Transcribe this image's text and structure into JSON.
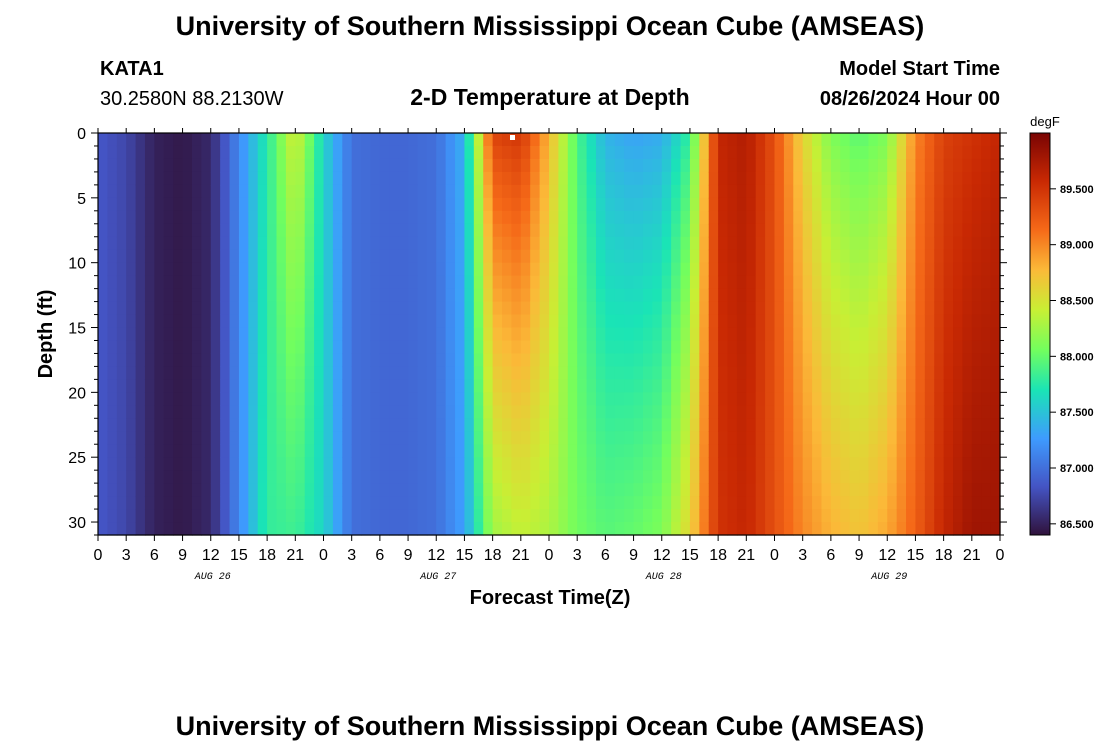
{
  "header": {
    "title": "University of Southern Mississippi Ocean Cube (AMSEAS)",
    "station": "KATA1",
    "coords": "30.2580N  88.2130W",
    "subtitle": "2-D Temperature at Depth",
    "model_label": "Model Start Time",
    "model_time": "08/26/2024 Hour 00",
    "footer_title": "University of Southern Mississippi Ocean Cube (AMSEAS)"
  },
  "chart_data": {
    "type": "heatmap",
    "title": "2-D Temperature at Depth",
    "xlabel": "Forecast Time(Z)",
    "ylabel": "Depth (ft)",
    "x_hours": [
      0,
      96
    ],
    "x_tick_labels": [
      "0",
      "3",
      "6",
      "9",
      "12",
      "15",
      "18",
      "21",
      "0",
      "3",
      "6",
      "9",
      "12",
      "15",
      "18",
      "21",
      "0",
      "3",
      "6",
      "9",
      "12",
      "15",
      "18",
      "21",
      "0",
      "3",
      "6",
      "9",
      "12",
      "15",
      "18",
      "21",
      "0"
    ],
    "day_labels": [
      "AUG 26",
      "AUG 27",
      "AUG 28",
      "AUG 29"
    ],
    "y_ticks": [
      0,
      5,
      10,
      15,
      20,
      25,
      30
    ],
    "ylim": [
      0,
      31
    ],
    "colorbar": {
      "unit": "degF",
      "range": [
        86.4,
        90.0
      ],
      "tick_values": [
        86.5,
        87.0,
        87.5,
        88.0,
        88.5,
        89.0,
        89.5
      ],
      "tick_labels": [
        "86.500",
        "87.000",
        "87.500",
        "88.000",
        "88.500",
        "89.000",
        "89.500"
      ]
    },
    "time_profile_hours": [
      0,
      3,
      6,
      9,
      12,
      15,
      18,
      21,
      24,
      27,
      30,
      33,
      36,
      39,
      42,
      45,
      48,
      51,
      54,
      57,
      60,
      63,
      66,
      69,
      72,
      75,
      78,
      81,
      84,
      87,
      90,
      93,
      96
    ],
    "temp_surface_degF": [
      86.85,
      86.75,
      86.5,
      86.45,
      86.55,
      87.15,
      87.75,
      88.5,
      87.6,
      87.0,
      86.95,
      86.95,
      87.0,
      87.4,
      89.4,
      89.5,
      88.8,
      87.9,
      87.4,
      87.3,
      87.35,
      87.8,
      89.6,
      89.7,
      89.3,
      88.6,
      88.1,
      87.95,
      88.1,
      89.0,
      89.4,
      89.5,
      89.6
    ],
    "temp_bottom_degF": [
      86.85,
      86.75,
      86.5,
      86.45,
      86.55,
      87.15,
      87.8,
      87.85,
      87.6,
      87.0,
      86.95,
      86.95,
      87.0,
      87.3,
      88.25,
      88.4,
      88.3,
      88.05,
      87.95,
      88.0,
      88.1,
      88.6,
      89.5,
      89.6,
      89.3,
      89.0,
      88.8,
      88.7,
      88.85,
      89.2,
      89.6,
      89.8,
      89.8
    ]
  }
}
